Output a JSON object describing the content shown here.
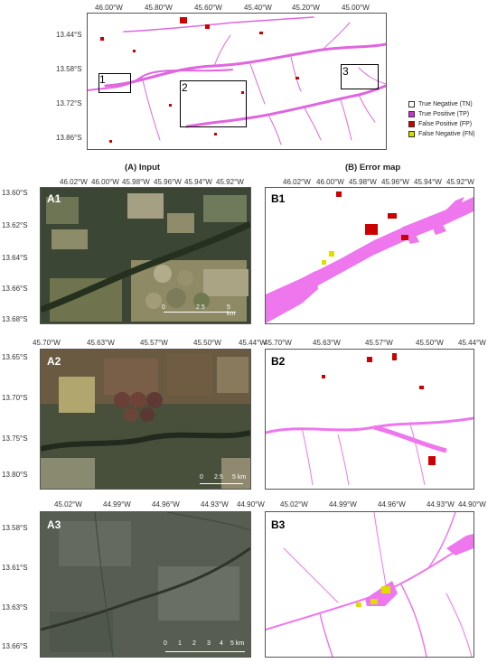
{
  "overview": {
    "x_ticks": [
      "46.00°W",
      "45.80°W",
      "45.60°W",
      "45.40°W",
      "45.20°W",
      "45.00°W"
    ],
    "y_ticks": [
      "13.44°S",
      "13.58°S",
      "13.72°S",
      "13.86°S"
    ],
    "zoom_labels": [
      "1",
      "2",
      "3"
    ]
  },
  "legend": {
    "items": [
      {
        "label": "True Negative (TN)",
        "color": "#ffffff"
      },
      {
        "label": "True Positive (TP)",
        "color": "#cc33cc"
      },
      {
        "label": "False Positive (FP)",
        "color": "#cc0000"
      },
      {
        "label": "False Negative (FN)",
        "color": "#dddd00"
      }
    ]
  },
  "columns": {
    "input_header": "(A) Input",
    "error_header": "(B) Error map"
  },
  "row1": {
    "x_ticks_a": [
      "46.02°W",
      "46.00°W",
      "45.98°W",
      "45.96°W",
      "45.94°W",
      "45.92°W"
    ],
    "x_ticks_b": [
      "46.02°W",
      "46.00°W",
      "45.98°W",
      "45.96°W",
      "45.94°W",
      "45.92°W"
    ],
    "y_ticks": [
      "13.60°S",
      "13.62°S",
      "13.64°S",
      "13.66°S",
      "13.68°S"
    ],
    "tag_a": "A1",
    "tag_b": "B1",
    "scale": [
      "0",
      "2.5",
      "5 km"
    ]
  },
  "row2": {
    "x_ticks_a": [
      "45.70°W",
      "45.63°W",
      "45.57°W",
      "45.50°W",
      "45.44°W"
    ],
    "x_ticks_b": [
      "45.70°W",
      "45.63°W",
      "45.57°W",
      "45.50°W",
      "45.44°W"
    ],
    "y_ticks": [
      "13.65°S",
      "13.70°S",
      "13.75°S",
      "13.80°S"
    ],
    "tag_a": "A2",
    "tag_b": "B2",
    "scale": [
      "0",
      "2.5",
      "5 km"
    ]
  },
  "row3": {
    "x_ticks_a": [
      "45.02°W",
      "44.99°W",
      "44.96°W",
      "44.93°W",
      "44.90°W"
    ],
    "x_ticks_b": [
      "45.02°W",
      "44.99°W",
      "44.96°W",
      "44.93°W",
      "44.90°W"
    ],
    "y_ticks": [
      "13.58°S",
      "13.61°S",
      "13.63°S",
      "13.66°S"
    ],
    "tag_a": "A3",
    "tag_b": "B3",
    "scale": [
      "0",
      "1",
      "2",
      "3",
      "4",
      "5 km"
    ]
  }
}
